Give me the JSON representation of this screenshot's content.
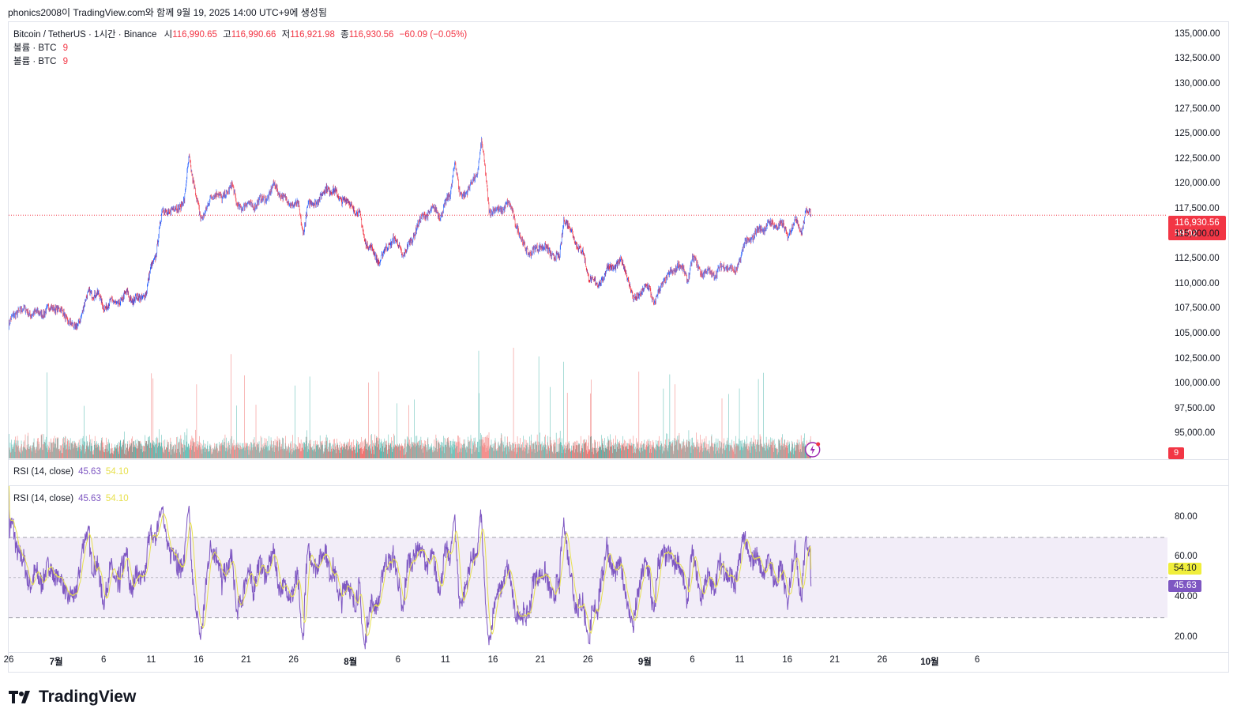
{
  "header": {
    "caption": "phonics2008이 TradingView.com와 함께 9월 19, 2025 14:00 UTC+9에 생성됨"
  },
  "legend": {
    "symbol": "Bitcoin / TetherUS · 1시간 · Binance",
    "open_label": "시",
    "open": "116,990.65",
    "high_label": "고",
    "high": "116,990.66",
    "low_label": "저",
    "low": "116,921.98",
    "close_label": "종",
    "close": "116,930.56",
    "change": "−60.09 (−0.05%)",
    "volume_rows": [
      {
        "label": "볼륨 · BTC",
        "value": "9"
      },
      {
        "label": "볼륨 · BTC",
        "value": "9"
      }
    ]
  },
  "rsi_legend": [
    {
      "label": "RSI (14, close)",
      "rsi": "45.63",
      "ma": "54.10"
    },
    {
      "label": "RSI (14, close)",
      "rsi": "45.63",
      "ma": "54.10"
    }
  ],
  "price_tag": {
    "price": "116,930.56",
    "countdown": "59:02"
  },
  "volume_tag": "9",
  "rsi_tags": {
    "ma": "54.10",
    "rsi": "45.63"
  },
  "logo_text": "TradingView",
  "colors": {
    "up": "#2962ff",
    "down": "#f23645",
    "vol_up": "#26a69a",
    "vol_down": "#ef5350",
    "rsi": "#7e57c2",
    "rsi_ma": "#e7e04e",
    "rsi_band": "#ede7f6"
  },
  "chart_data": [
    {
      "type": "candlestick",
      "title": "Bitcoin / TetherUS · 1시간 · Binance",
      "ylim": [
        92500,
        136250
      ],
      "y_ticks": [
        "135,000.00",
        "132,500.00",
        "130,000.00",
        "127,500.00",
        "125,000.00",
        "122,500.00",
        "120,000.00",
        "117,500.00",
        "115,000.00",
        "112,500.00",
        "110,000.00",
        "107,500.00",
        "105,000.00",
        "102,500.00",
        "100,000.00",
        "97,500.00",
        "95,000.00"
      ],
      "y_tick_values": [
        135000,
        132500,
        130000,
        127500,
        125000,
        122500,
        120000,
        117500,
        115000,
        112500,
        110000,
        107500,
        105000,
        102500,
        100000,
        97500,
        95000
      ],
      "x_ticks": [
        {
          "label": "26",
          "day": 0
        },
        {
          "label": "7월",
          "day": 5,
          "bold": true
        },
        {
          "label": "6",
          "day": 10
        },
        {
          "label": "11",
          "day": 15
        },
        {
          "label": "16",
          "day": 20
        },
        {
          "label": "21",
          "day": 25
        },
        {
          "label": "26",
          "day": 30
        },
        {
          "label": "8월",
          "day": 36,
          "bold": true
        },
        {
          "label": "6",
          "day": 41
        },
        {
          "label": "11",
          "day": 46
        },
        {
          "label": "16",
          "day": 51
        },
        {
          "label": "21",
          "day": 56
        },
        {
          "label": "26",
          "day": 61
        },
        {
          "label": "9월",
          "day": 67,
          "bold": true
        },
        {
          "label": "6",
          "day": 72
        },
        {
          "label": "11",
          "day": 77
        },
        {
          "label": "16",
          "day": 82
        },
        {
          "label": "21",
          "day": 87
        },
        {
          "label": "26",
          "day": 92
        },
        {
          "label": "10월",
          "day": 97,
          "bold": true
        },
        {
          "label": "6",
          "day": 102
        }
      ],
      "x_start": "2025-06-26",
      "last_price": 116930.56,
      "close_path": [
        {
          "day": 0,
          "price": 106000
        },
        {
          "day": 1,
          "price": 107500
        },
        {
          "day": 3,
          "price": 107000
        },
        {
          "day": 5,
          "price": 107800
        },
        {
          "day": 6.5,
          "price": 106200
        },
        {
          "day": 7,
          "price": 105300
        },
        {
          "day": 8,
          "price": 108000
        },
        {
          "day": 8.5,
          "price": 109300
        },
        {
          "day": 9.5,
          "price": 108800
        },
        {
          "day": 10,
          "price": 107800
        },
        {
          "day": 11,
          "price": 108200
        },
        {
          "day": 12,
          "price": 108300
        },
        {
          "day": 12.5,
          "price": 109400
        },
        {
          "day": 13,
          "price": 108300
        },
        {
          "day": 14.5,
          "price": 109100
        },
        {
          "day": 15,
          "price": 111800
        },
        {
          "day": 15.5,
          "price": 113000
        },
        {
          "day": 16.2,
          "price": 117500
        },
        {
          "day": 17,
          "price": 117200
        },
        {
          "day": 18.5,
          "price": 118300
        },
        {
          "day": 19,
          "price": 122800
        },
        {
          "day": 19.8,
          "price": 118500
        },
        {
          "day": 20.2,
          "price": 116500
        },
        {
          "day": 21,
          "price": 118000
        },
        {
          "day": 22,
          "price": 119500
        },
        {
          "day": 22.5,
          "price": 118300
        },
        {
          "day": 23.5,
          "price": 120200
        },
        {
          "day": 24,
          "price": 117800
        },
        {
          "day": 26,
          "price": 118000
        },
        {
          "day": 27.5,
          "price": 119000
        },
        {
          "day": 28,
          "price": 120000
        },
        {
          "day": 29,
          "price": 118500
        },
        {
          "day": 30.5,
          "price": 117800
        },
        {
          "day": 31,
          "price": 115200
        },
        {
          "day": 31.5,
          "price": 117800
        },
        {
          "day": 33,
          "price": 118800
        },
        {
          "day": 33.5,
          "price": 119800
        },
        {
          "day": 35,
          "price": 118600
        },
        {
          "day": 36,
          "price": 118000
        },
        {
          "day": 37,
          "price": 116800
        },
        {
          "day": 37.5,
          "price": 114500
        },
        {
          "day": 38.5,
          "price": 113000
        },
        {
          "day": 39,
          "price": 112300
        },
        {
          "day": 40.5,
          "price": 114700
        },
        {
          "day": 41.5,
          "price": 113000
        },
        {
          "day": 42.5,
          "price": 114400
        },
        {
          "day": 43,
          "price": 116000
        },
        {
          "day": 44.5,
          "price": 117500
        },
        {
          "day": 45.5,
          "price": 117000
        },
        {
          "day": 46.5,
          "price": 119000
        },
        {
          "day": 47,
          "price": 122500
        },
        {
          "day": 47.5,
          "price": 118800
        },
        {
          "day": 48.5,
          "price": 119600
        },
        {
          "day": 49.3,
          "price": 121000
        },
        {
          "day": 49.8,
          "price": 124300
        },
        {
          "day": 50.2,
          "price": 121200
        },
        {
          "day": 50.6,
          "price": 117500
        },
        {
          "day": 51.5,
          "price": 117300
        },
        {
          "day": 52.5,
          "price": 118000
        },
        {
          "day": 53,
          "price": 117500
        },
        {
          "day": 54,
          "price": 114300
        },
        {
          "day": 55,
          "price": 113000
        },
        {
          "day": 56,
          "price": 114000
        },
        {
          "day": 57,
          "price": 113200
        },
        {
          "day": 58,
          "price": 112500
        },
        {
          "day": 58.5,
          "price": 116800
        },
        {
          "day": 59.5,
          "price": 114700
        },
        {
          "day": 60.5,
          "price": 113000
        },
        {
          "day": 61,
          "price": 111000
        },
        {
          "day": 62,
          "price": 109800
        },
        {
          "day": 63,
          "price": 111500
        },
        {
          "day": 64.5,
          "price": 112200
        },
        {
          "day": 65,
          "price": 111500
        },
        {
          "day": 65.8,
          "price": 108300
        },
        {
          "day": 66.5,
          "price": 109200
        },
        {
          "day": 67.5,
          "price": 109800
        },
        {
          "day": 68,
          "price": 108000
        },
        {
          "day": 69,
          "price": 110500
        },
        {
          "day": 70,
          "price": 111200
        },
        {
          "day": 70.5,
          "price": 112200
        },
        {
          "day": 71.5,
          "price": 110500
        },
        {
          "day": 72,
          "price": 112600
        },
        {
          "day": 73,
          "price": 111200
        },
        {
          "day": 74.5,
          "price": 111100
        },
        {
          "day": 75.5,
          "price": 112000
        },
        {
          "day": 76.5,
          "price": 111100
        },
        {
          "day": 77.5,
          "price": 114000
        },
        {
          "day": 79,
          "price": 115400
        },
        {
          "day": 80,
          "price": 116000
        },
        {
          "day": 81.5,
          "price": 115900
        },
        {
          "day": 82,
          "price": 115000
        },
        {
          "day": 83,
          "price": 116500
        },
        {
          "day": 83.5,
          "price": 115300
        },
        {
          "day": 84,
          "price": 117200
        },
        {
          "day": 84.5,
          "price": 117200
        }
      ]
    },
    {
      "type": "histogram",
      "title": "볼륨 · BTC",
      "last_value": 9
    },
    {
      "type": "line",
      "title": "RSI (14, close)",
      "ylim": [
        12.9,
        95.6
      ],
      "y_ticks": [
        "80.00",
        "60.00",
        "40.00",
        "20.00"
      ],
      "y_tick_values": [
        80,
        60,
        40,
        20
      ],
      "bands": {
        "upper": 70,
        "middle": 50,
        "lower": 30
      },
      "series": [
        {
          "name": "RSI",
          "last": 45.63
        },
        {
          "name": "RSI-based MA",
          "last": 54.1
        }
      ]
    }
  ]
}
